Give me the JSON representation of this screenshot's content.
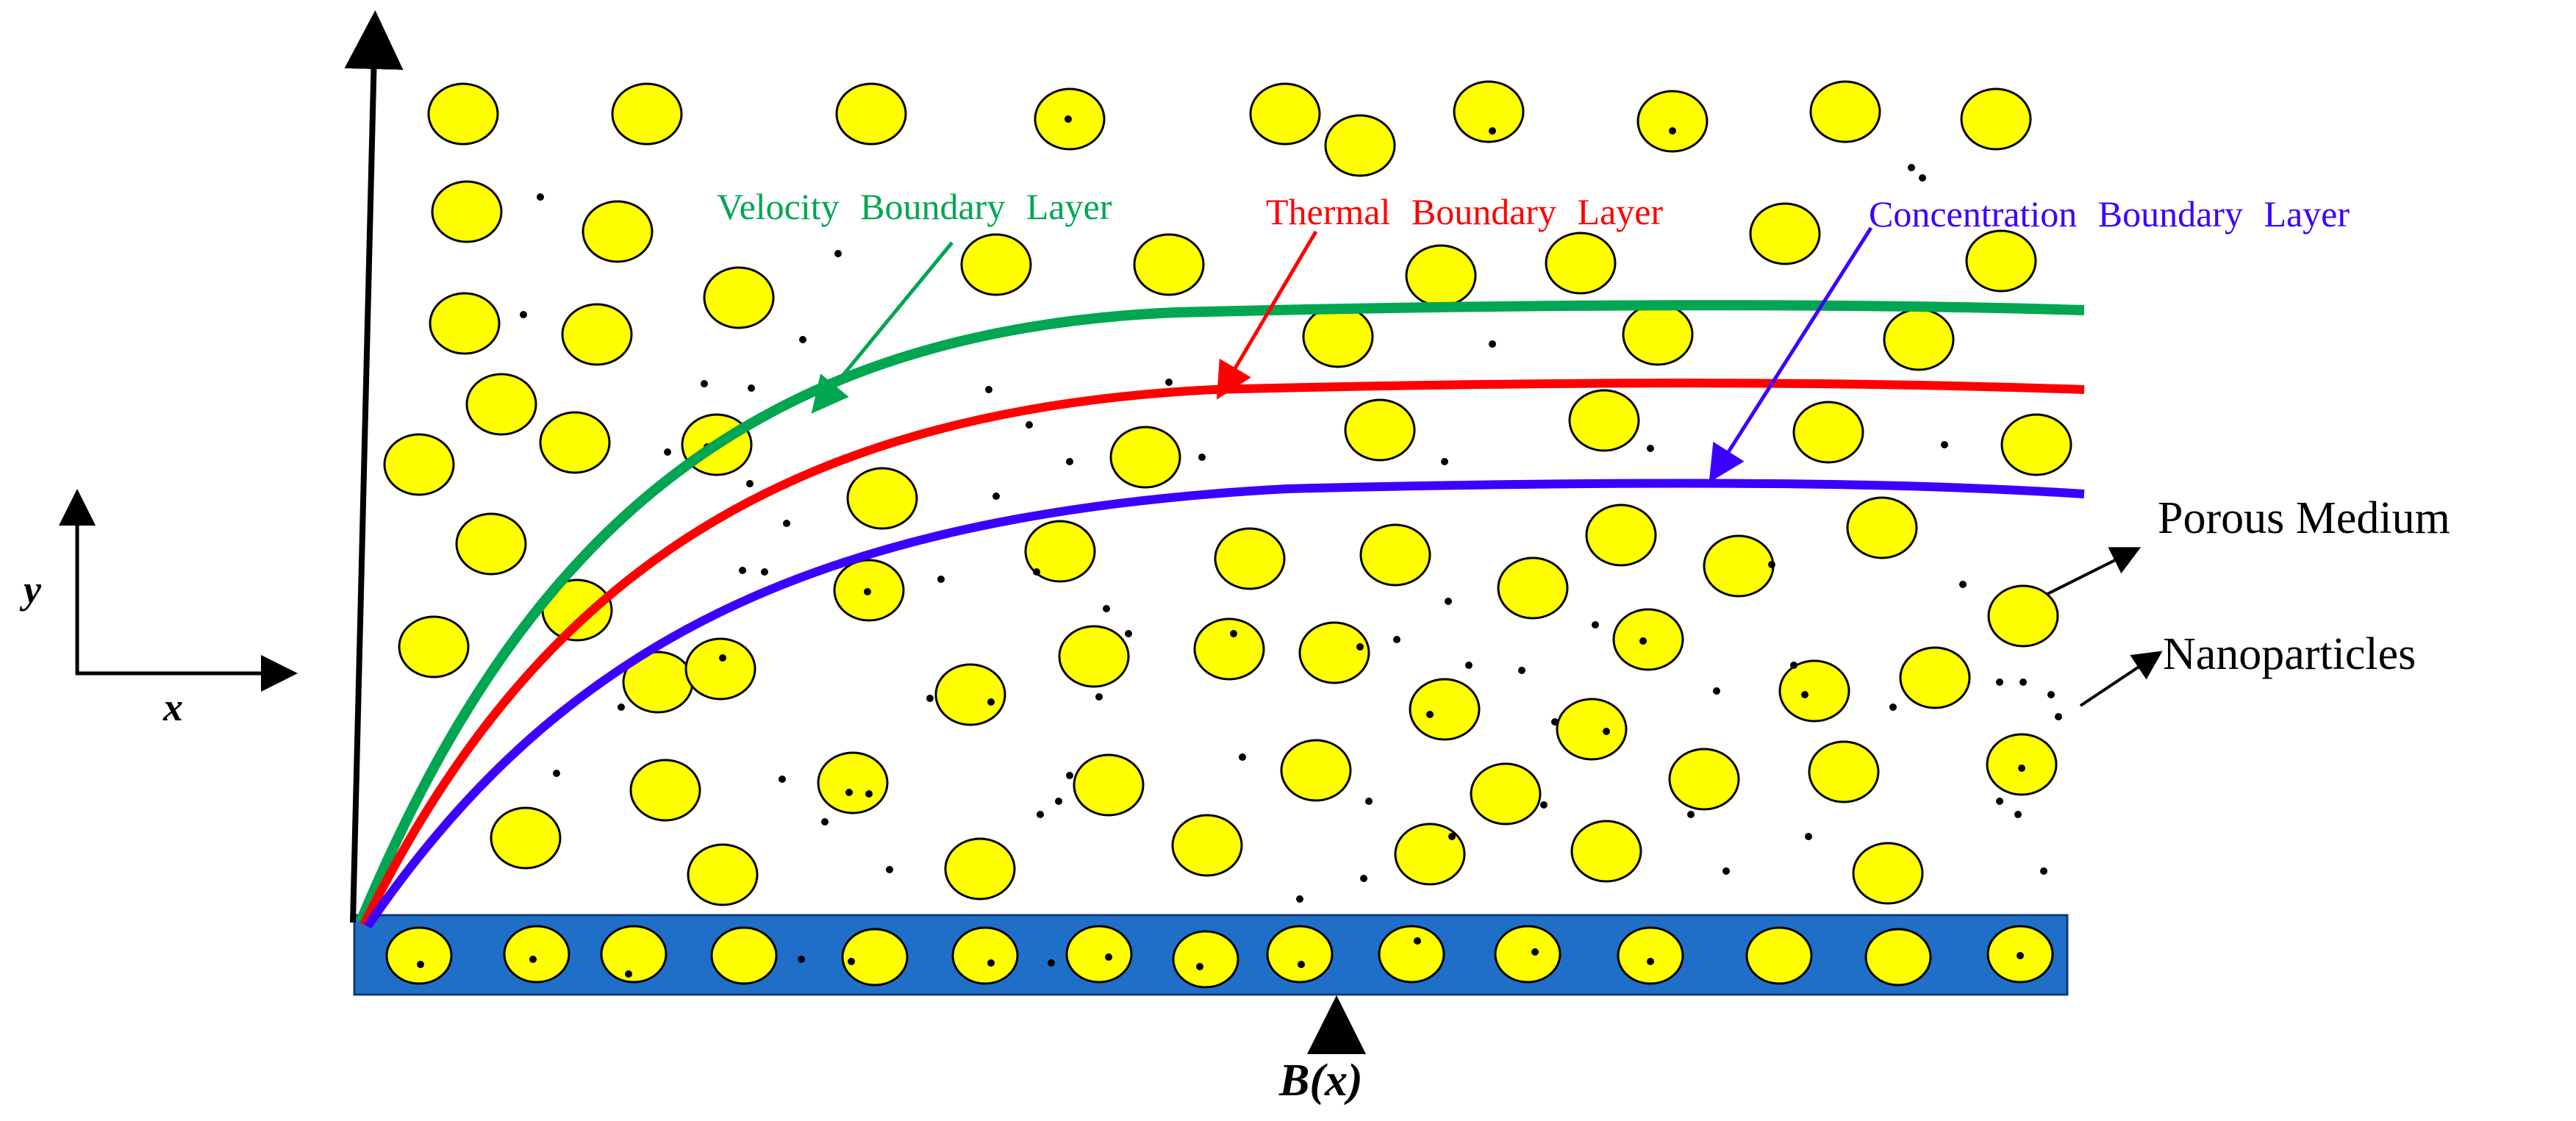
{
  "labels": {
    "velocity_layer": "Velocity Boundary Layer",
    "thermal_layer": "Thermal Boundary Layer",
    "concentration_layer": "Concentration Boundary Layer",
    "porous_medium": "Porous Medium",
    "nanoparticles": "Nanoparticles",
    "axis_y": "y",
    "axis_x": "x",
    "wall_function": "B(x)"
  },
  "colors": {
    "velocity": "#00a651",
    "thermal": "#ff0000",
    "concentration": "#3b00ff",
    "particle_fill": "#ffff00",
    "wall": "#1f6fc8",
    "ink": "#000000"
  }
}
